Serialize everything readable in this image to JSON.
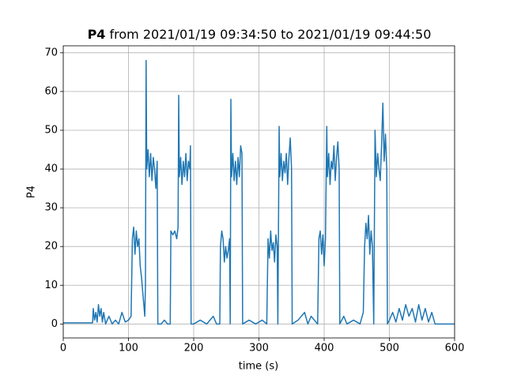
{
  "chart_data": {
    "type": "line",
    "title_parts": [
      "P4",
      "from 2021/01/19 09:34:50 to 2021/01/19 09:44:50"
    ],
    "xlabel": "time (s)",
    "ylabel": "P4",
    "color": "#1f77b4",
    "grid": true,
    "xlim": [
      0,
      600
    ],
    "ylim": [
      -3.6,
      71.8
    ],
    "xticks": [
      0,
      100,
      200,
      300,
      400,
      500,
      600
    ],
    "yticks": [
      0,
      10,
      20,
      30,
      40,
      50,
      60,
      70
    ],
    "x": [
      0,
      45,
      46,
      48,
      50,
      52,
      54,
      56,
      58,
      60,
      62,
      65,
      70,
      75,
      80,
      85,
      90,
      95,
      100,
      104,
      106,
      108,
      110,
      112,
      114,
      116,
      118,
      120,
      122,
      124,
      125,
      126,
      127,
      128,
      130,
      132,
      134,
      136,
      138,
      140,
      142,
      144,
      145,
      150,
      155,
      160,
      164,
      165,
      168,
      171,
      174,
      176,
      177,
      178,
      180,
      182,
      184,
      186,
      188,
      190,
      192,
      194,
      195,
      196,
      200,
      210,
      220,
      230,
      235,
      240,
      241,
      243,
      245,
      247,
      249,
      251,
      253,
      255,
      256,
      257,
      258,
      260,
      262,
      264,
      266,
      268,
      270,
      272,
      274,
      275,
      285,
      295,
      305,
      312,
      314,
      316,
      318,
      320,
      322,
      324,
      326,
      328,
      329,
      331,
      332,
      334,
      336,
      338,
      340,
      342,
      344,
      346,
      348,
      350,
      351,
      360,
      370,
      375,
      380,
      390,
      392,
      394,
      396,
      398,
      400,
      402,
      404,
      405,
      407,
      409,
      411,
      413,
      415,
      417,
      419,
      421,
      423,
      424,
      430,
      435,
      445,
      455,
      460,
      462,
      464,
      466,
      468,
      470,
      472,
      474,
      476,
      478,
      480,
      482,
      484,
      486,
      488,
      490,
      492,
      494,
      496,
      497,
      500,
      505,
      510,
      515,
      520,
      525,
      530,
      535,
      540,
      545,
      550,
      555,
      560,
      565,
      570,
      580,
      600
    ],
    "values": [
      0.3,
      0.3,
      4,
      1,
      3,
      0.5,
      5,
      2,
      4,
      0.5,
      3,
      0,
      2,
      0,
      1,
      0,
      3,
      0.5,
      1,
      2,
      22,
      25,
      18,
      24,
      20,
      22,
      15,
      12,
      8,
      4,
      2,
      10,
      68,
      40,
      45,
      38,
      44,
      37,
      43,
      40,
      35,
      42,
      0,
      0,
      1,
      0,
      0,
      24,
      23,
      24,
      22,
      25,
      59,
      38,
      43,
      36,
      42,
      38,
      44,
      37,
      42,
      40,
      46,
      0,
      0,
      1,
      0,
      2,
      0,
      0,
      20,
      24,
      22,
      16,
      20,
      17,
      19,
      22,
      0,
      58,
      38,
      44,
      37,
      42,
      36,
      43,
      38,
      46,
      44,
      0,
      1,
      0,
      1,
      0,
      22,
      17,
      24,
      19,
      21,
      16,
      23,
      20,
      0,
      51,
      38,
      44,
      37,
      42,
      39,
      44,
      36,
      43,
      48,
      40,
      0,
      1,
      3,
      0,
      2,
      0,
      22,
      24,
      18,
      23,
      15,
      22,
      51,
      38,
      44,
      36,
      42,
      40,
      46,
      37,
      43,
      47,
      40,
      0,
      2,
      0,
      1,
      0,
      3,
      20,
      26,
      22,
      28,
      18,
      24,
      20,
      0,
      50,
      38,
      44,
      40,
      37,
      46,
      57,
      42,
      49,
      40,
      0,
      1,
      3,
      0.5,
      4,
      1,
      5,
      2,
      4,
      0.5,
      5,
      1,
      4,
      0.5,
      3,
      0,
      0,
      0
    ]
  }
}
